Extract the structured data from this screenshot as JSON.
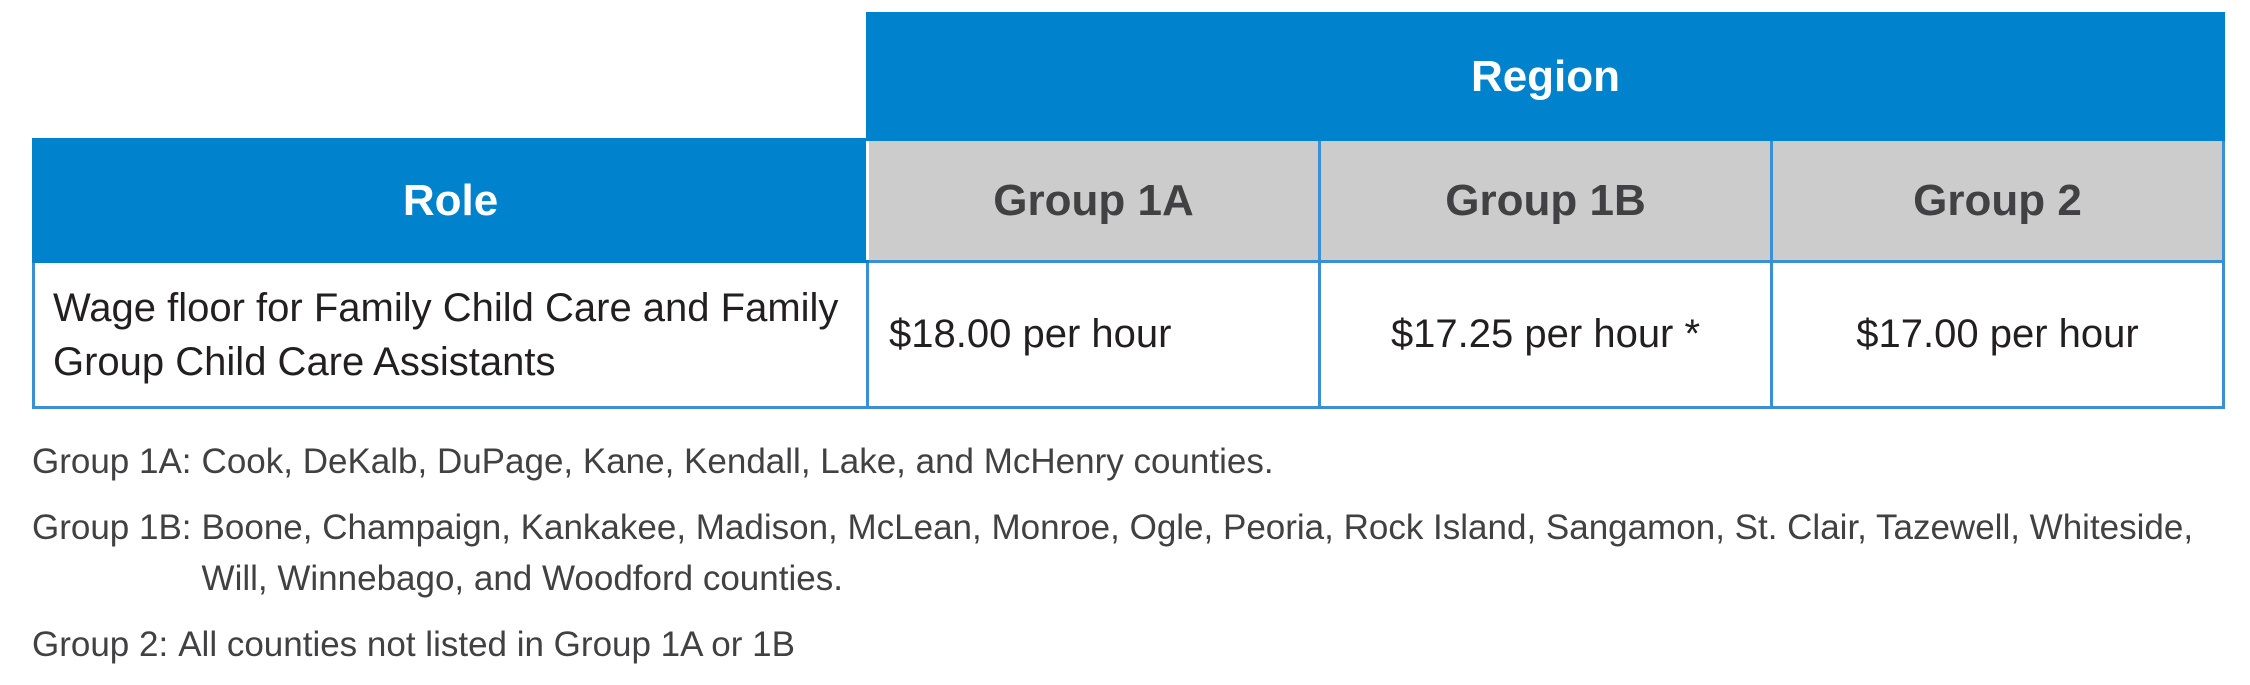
{
  "table": {
    "region_label": "Region",
    "role_label": "Role",
    "groups": [
      "Group 1A",
      "Group 1B",
      "Group 2"
    ],
    "rows": [
      {
        "role": "Wage floor for Family Child Care and Family Group Child Care Assistants",
        "rates": [
          "$18.00 per hour",
          "$17.25 per hour *",
          "$17.00 per hour"
        ]
      }
    ]
  },
  "notes": [
    {
      "label": "Group 1A:",
      "text": "Cook, DeKalb, DuPage, Kane, Kendall, Lake, and McHenry counties."
    },
    {
      "label": "Group 1B:",
      "text": "Boone, Champaign, Kankakee, Madison, McLean, Monroe, Ogle, Peoria, Rock Island, Sangamon, St. Clair, Tazewell, Whiteside, Will, Winnebago, and Woodford counties."
    },
    {
      "label": "Group 2:",
      "text": "All counties not listed in Group 1A or 1B"
    }
  ],
  "colors": {
    "header_blue": "#0083cc",
    "group_gray": "#cccccc",
    "border_blue": "#3b8fd4"
  }
}
